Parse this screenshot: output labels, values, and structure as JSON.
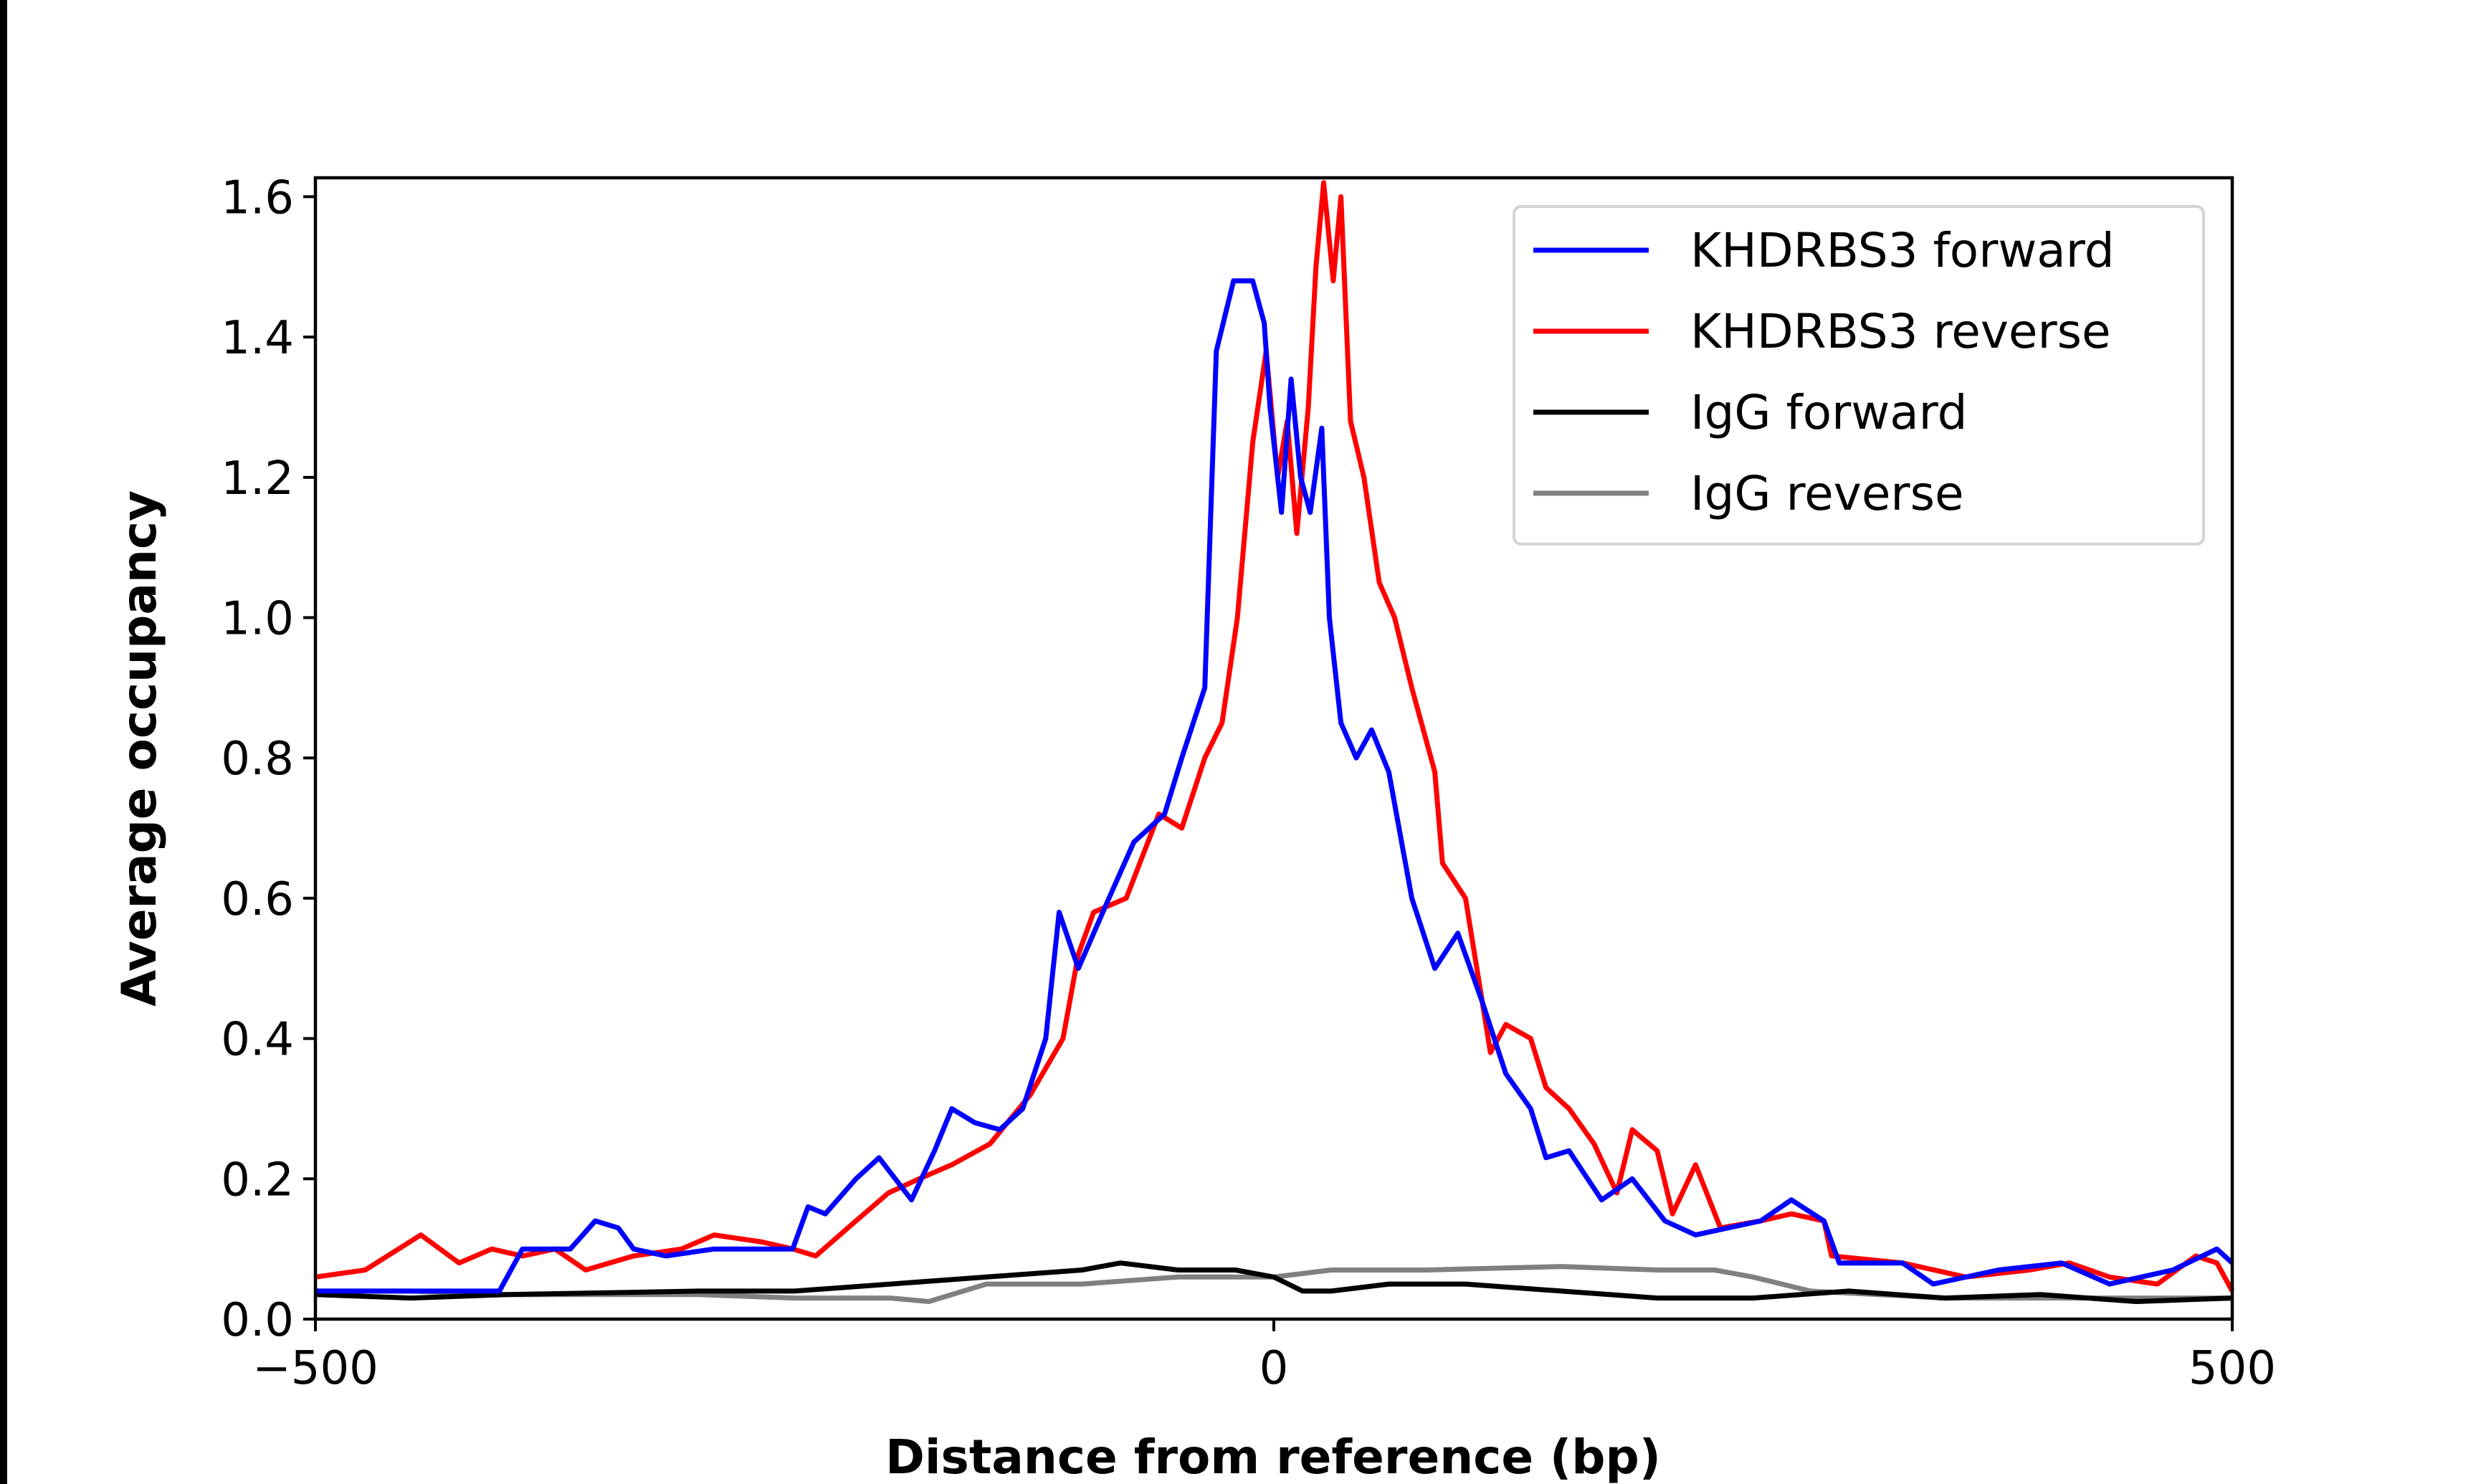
{
  "chart_data": {
    "type": "line",
    "title": "",
    "xlabel": "Distance from reference (bp)",
    "ylabel": "Average occupancy",
    "xlim": [
      -500,
      500
    ],
    "ylim": [
      0,
      1.627
    ],
    "xticks": [
      -500,
      0,
      500
    ],
    "xtick_labels": [
      "−500",
      "0",
      "500"
    ],
    "yticks": [
      0,
      0.2,
      0.4,
      0.6,
      0.8,
      1.0,
      1.2,
      1.4,
      1.6
    ],
    "ytick_labels": [
      "0.0",
      "0.2",
      "0.4",
      "0.6",
      "0.8",
      "1.0",
      "1.2",
      "1.4",
      "1.6"
    ],
    "grid": false,
    "legend_position": "top-right",
    "series": [
      {
        "name": "KHDRBS3 forward",
        "color": "#0000ff",
        "x": [
          -500,
          -458,
          -404,
          -392,
          -367,
          -354,
          -342,
          -334,
          -317,
          -292,
          -251,
          -243,
          -234,
          -218,
          -206,
          -189,
          -177,
          -168,
          -156,
          -143,
          -131,
          -119,
          -112,
          -102,
          -86,
          -73,
          -57,
          -48,
          -36,
          -30,
          -21,
          -11,
          -5,
          -2,
          4,
          9,
          14,
          19,
          25,
          29,
          35,
          43,
          51,
          60,
          72,
          84,
          96,
          109,
          121,
          134,
          142,
          154,
          171,
          187,
          204,
          220,
          254,
          270,
          287,
          295,
          328,
          344,
          378,
          411,
          436,
          469,
          492,
          500
        ],
        "y": [
          0.04,
          0.04,
          0.04,
          0.1,
          0.1,
          0.14,
          0.13,
          0.1,
          0.09,
          0.1,
          0.1,
          0.16,
          0.15,
          0.2,
          0.23,
          0.17,
          0.24,
          0.3,
          0.28,
          0.27,
          0.3,
          0.4,
          0.58,
          0.5,
          0.6,
          0.68,
          0.72,
          0.8,
          0.9,
          1.38,
          1.48,
          1.48,
          1.42,
          1.3,
          1.15,
          1.34,
          1.2,
          1.15,
          1.27,
          1.0,
          0.85,
          0.8,
          0.84,
          0.78,
          0.6,
          0.5,
          0.55,
          0.45,
          0.35,
          0.3,
          0.23,
          0.24,
          0.17,
          0.2,
          0.14,
          0.12,
          0.14,
          0.17,
          0.14,
          0.08,
          0.08,
          0.05,
          0.07,
          0.08,
          0.05,
          0.07,
          0.1,
          0.08
        ]
      },
      {
        "name": "KHDRBS3 reverse",
        "color": "#ff0000",
        "x": [
          -500,
          -474,
          -445,
          -425,
          -408,
          -392,
          -375,
          -359,
          -334,
          -309,
          -292,
          -267,
          -251,
          -239,
          -218,
          -201,
          -185,
          -168,
          -148,
          -127,
          -110,
          -102,
          -94,
          -77,
          -60,
          -48,
          -36,
          -27,
          -19,
          -11,
          -4,
          2,
          7,
          12,
          18,
          22,
          26,
          31,
          35,
          40,
          47,
          55,
          63,
          72,
          84,
          88,
          100,
          113,
          121,
          134,
          142,
          154,
          167,
          179,
          187,
          200,
          208,
          220,
          233,
          254,
          270,
          287,
          291,
          328,
          361,
          394,
          415,
          436,
          461,
          481,
          492,
          500
        ],
        "y": [
          0.06,
          0.07,
          0.12,
          0.08,
          0.1,
          0.09,
          0.1,
          0.07,
          0.09,
          0.1,
          0.12,
          0.11,
          0.1,
          0.09,
          0.14,
          0.18,
          0.2,
          0.22,
          0.25,
          0.32,
          0.4,
          0.52,
          0.58,
          0.6,
          0.72,
          0.7,
          0.8,
          0.85,
          1.0,
          1.25,
          1.38,
          1.2,
          1.28,
          1.12,
          1.3,
          1.5,
          1.62,
          1.48,
          1.6,
          1.28,
          1.2,
          1.05,
          1.0,
          0.9,
          0.78,
          0.65,
          0.6,
          0.38,
          0.42,
          0.4,
          0.33,
          0.3,
          0.25,
          0.18,
          0.27,
          0.24,
          0.15,
          0.22,
          0.13,
          0.14,
          0.15,
          0.14,
          0.09,
          0.08,
          0.06,
          0.07,
          0.08,
          0.06,
          0.05,
          0.09,
          0.08,
          0.04
        ]
      },
      {
        "name": "IgG forward",
        "color": "#000000",
        "x": [
          -500,
          -450,
          -400,
          -300,
          -250,
          -200,
          -150,
          -100,
          -80,
          -50,
          -20,
          0,
          15,
          30,
          60,
          100,
          150,
          200,
          250,
          300,
          350,
          400,
          450,
          500
        ],
        "y": [
          0.035,
          0.03,
          0.035,
          0.04,
          0.04,
          0.05,
          0.06,
          0.07,
          0.08,
          0.07,
          0.07,
          0.06,
          0.04,
          0.04,
          0.05,
          0.05,
          0.04,
          0.03,
          0.03,
          0.04,
          0.03,
          0.035,
          0.025,
          0.03
        ]
      },
      {
        "name": "IgG reverse",
        "color": "#808080",
        "x": [
          -500,
          -450,
          -400,
          -300,
          -250,
          -200,
          -180,
          -150,
          -100,
          -50,
          0,
          30,
          80,
          150,
          200,
          230,
          250,
          280,
          350,
          400,
          450,
          500
        ],
        "y": [
          0.04,
          0.04,
          0.035,
          0.035,
          0.03,
          0.03,
          0.025,
          0.05,
          0.05,
          0.06,
          0.06,
          0.07,
          0.07,
          0.075,
          0.07,
          0.07,
          0.06,
          0.04,
          0.03,
          0.03,
          0.03,
          0.03
        ]
      }
    ]
  }
}
